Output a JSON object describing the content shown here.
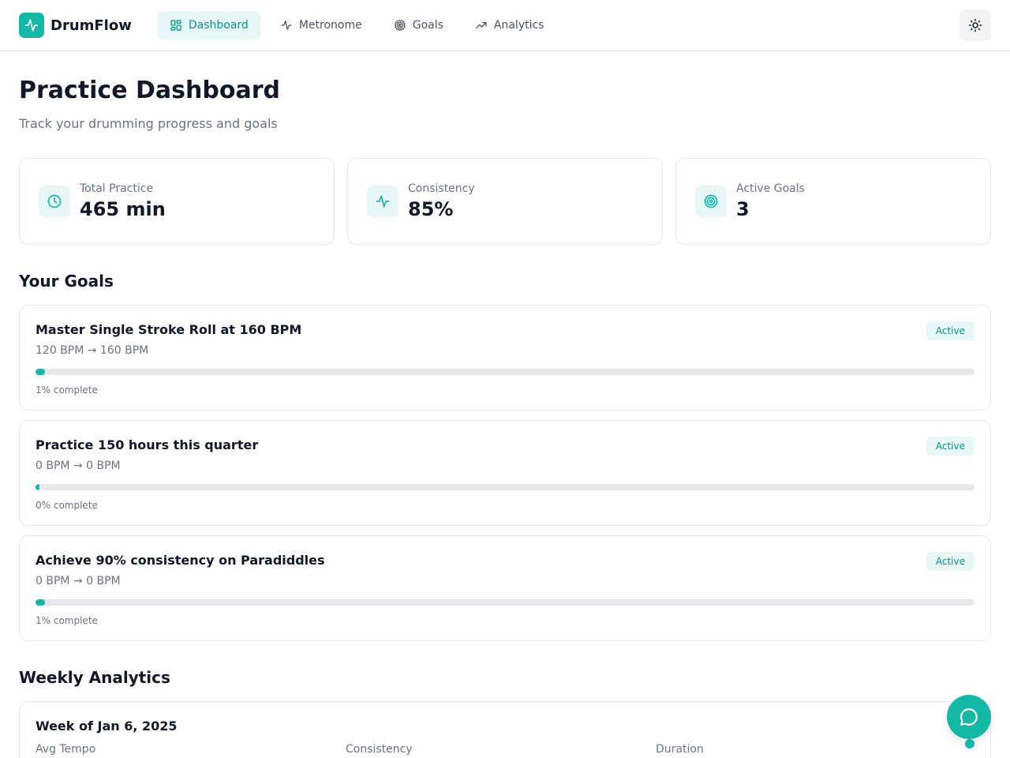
{
  "app": {
    "name": "DrumFlow",
    "logo_icon": "pulse-icon"
  },
  "nav": {
    "items": [
      {
        "label": "Dashboard",
        "icon": "dashboard-icon",
        "active": true
      },
      {
        "label": "Metronome",
        "icon": "pulse-icon",
        "active": false
      },
      {
        "label": "Goals",
        "icon": "target-icon",
        "active": false
      },
      {
        "label": "Analytics",
        "icon": "trending-up-icon",
        "active": false
      }
    ],
    "theme_toggle_icon": "sun-icon"
  },
  "page": {
    "title": "Practice Dashboard",
    "subtitle": "Track your drumming progress and goals"
  },
  "stats": [
    {
      "label": "Total Practice",
      "value": "465 min",
      "icon": "clock-icon"
    },
    {
      "label": "Consistency",
      "value": "85%",
      "icon": "pulse-icon"
    },
    {
      "label": "Active Goals",
      "value": "3",
      "icon": "target-icon"
    }
  ],
  "goals": {
    "title": "Your Goals",
    "items": [
      {
        "name": "Master Single Stroke Roll at 160 BPM",
        "range": "120 BPM → 160 BPM",
        "status": "Active",
        "progress": 1,
        "complete_text": "1% complete"
      },
      {
        "name": "Practice 150 hours this quarter",
        "range": "0 BPM → 0 BPM",
        "status": "Active",
        "progress": 0,
        "complete_text": "0% complete"
      },
      {
        "name": "Achieve 90% consistency on Paradiddles",
        "range": "0 BPM → 0 BPM",
        "status": "Active",
        "progress": 1,
        "complete_text": "1% complete"
      }
    ]
  },
  "analytics": {
    "title": "Weekly Analytics",
    "week_title": "Week of Jan 6, 2025",
    "metrics": [
      {
        "label": "Avg Tempo"
      },
      {
        "label": "Consistency"
      },
      {
        "label": "Duration"
      }
    ]
  },
  "chat": {
    "icon": "chat-icon"
  },
  "colors": {
    "accent": "#14b8a6",
    "accent_dark": "#0d9488",
    "accent_soft": "#e6f7f5",
    "text": "#111827",
    "muted": "#6b7280",
    "border": "#e5e7eb"
  }
}
